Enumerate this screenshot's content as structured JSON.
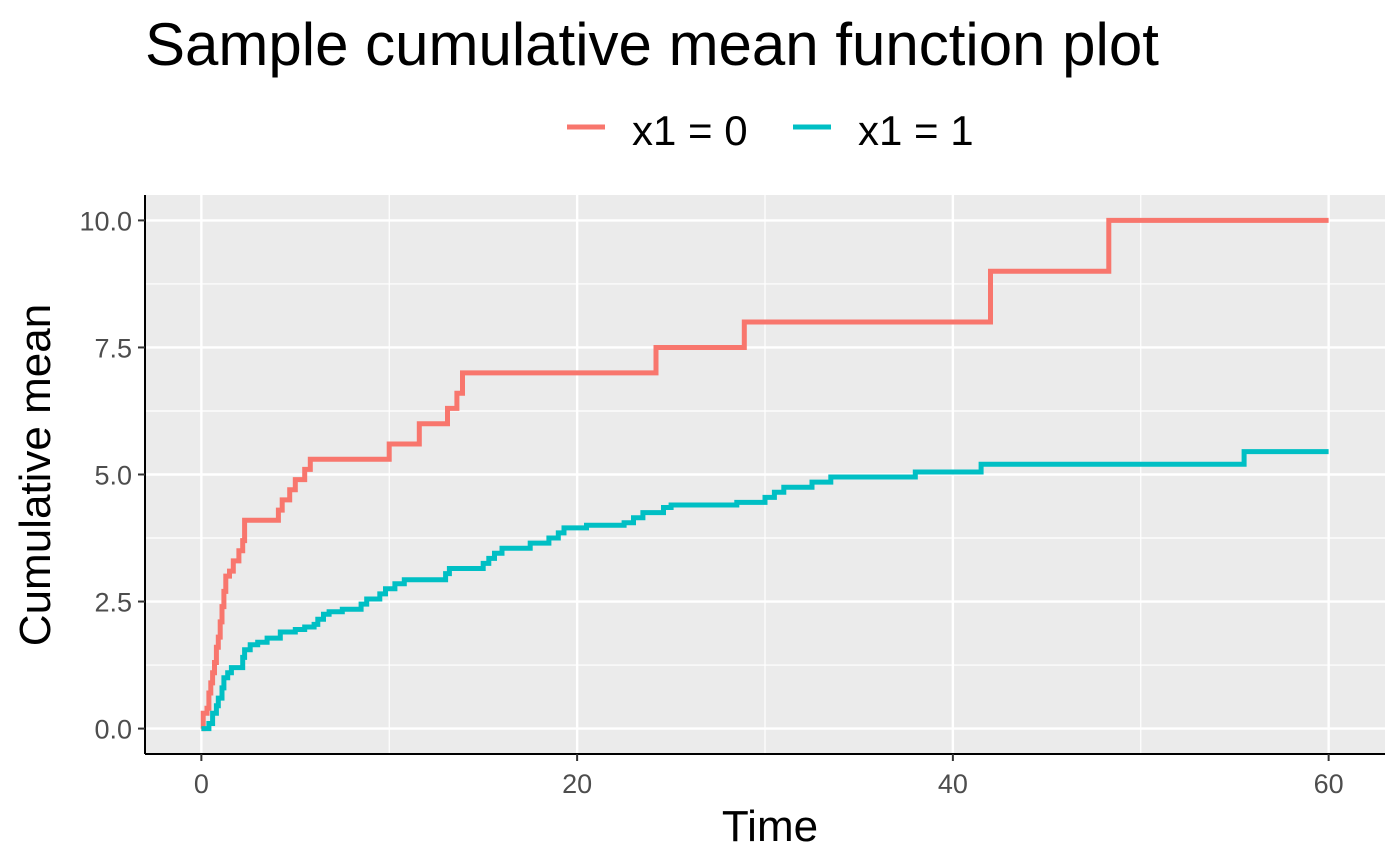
{
  "chart_data": {
    "type": "line",
    "step": true,
    "title": "Sample cumulative mean function plot",
    "xlabel": "Time",
    "ylabel": "Cumulative mean",
    "xlim": [
      -3,
      63
    ],
    "ylim": [
      -0.5,
      10.5
    ],
    "xticks": [
      0,
      20,
      40,
      60
    ],
    "xtick_labels": [
      "0",
      "20",
      "40",
      "60"
    ],
    "yticks": [
      0,
      2.5,
      5,
      7.5,
      10
    ],
    "ytick_labels": [
      "0.0",
      "2.5",
      "5.0",
      "7.5",
      "10.0"
    ],
    "grid": true,
    "legend_position": "top",
    "series": [
      {
        "name": "x1 = 0",
        "color": "#F8766D",
        "points": [
          [
            0,
            0
          ],
          [
            0.1,
            0.3
          ],
          [
            0.3,
            0.4
          ],
          [
            0.4,
            0.7
          ],
          [
            0.5,
            0.9
          ],
          [
            0.6,
            1.1
          ],
          [
            0.7,
            1.3
          ],
          [
            0.8,
            1.6
          ],
          [
            0.9,
            1.8
          ],
          [
            1.0,
            2.1
          ],
          [
            1.1,
            2.4
          ],
          [
            1.2,
            2.7
          ],
          [
            1.3,
            3.0
          ],
          [
            1.5,
            3.1
          ],
          [
            1.7,
            3.3
          ],
          [
            2.0,
            3.5
          ],
          [
            2.2,
            3.7
          ],
          [
            2.3,
            4.1
          ],
          [
            4.1,
            4.3
          ],
          [
            4.3,
            4.5
          ],
          [
            4.7,
            4.7
          ],
          [
            5.0,
            4.9
          ],
          [
            5.5,
            5.1
          ],
          [
            5.8,
            5.3
          ],
          [
            10.0,
            5.6
          ],
          [
            11.6,
            6.0
          ],
          [
            13.1,
            6.3
          ],
          [
            13.6,
            6.6
          ],
          [
            13.9,
            7.0
          ],
          [
            24.2,
            7.5
          ],
          [
            28.9,
            8.0
          ],
          [
            42.0,
            9.0
          ],
          [
            48.3,
            10.0
          ],
          [
            60,
            10.0
          ]
        ]
      },
      {
        "name": "x1 = 1",
        "color": "#00BFC4",
        "points": [
          [
            0,
            0
          ],
          [
            0.4,
            0.1
          ],
          [
            0.6,
            0.3
          ],
          [
            0.8,
            0.45
          ],
          [
            0.9,
            0.6
          ],
          [
            1.1,
            0.8
          ],
          [
            1.2,
            1.0
          ],
          [
            1.4,
            1.1
          ],
          [
            1.6,
            1.2
          ],
          [
            2.2,
            1.4
          ],
          [
            2.3,
            1.55
          ],
          [
            2.6,
            1.65
          ],
          [
            3.0,
            1.7
          ],
          [
            3.5,
            1.78
          ],
          [
            4.2,
            1.9
          ],
          [
            5.0,
            1.95
          ],
          [
            5.5,
            2.0
          ],
          [
            6.0,
            2.05
          ],
          [
            6.2,
            2.15
          ],
          [
            6.5,
            2.25
          ],
          [
            6.8,
            2.3
          ],
          [
            7.5,
            2.35
          ],
          [
            8.5,
            2.45
          ],
          [
            8.8,
            2.55
          ],
          [
            9.5,
            2.65
          ],
          [
            9.8,
            2.75
          ],
          [
            10.3,
            2.85
          ],
          [
            10.8,
            2.93
          ],
          [
            13.0,
            3.05
          ],
          [
            13.2,
            3.15
          ],
          [
            15.0,
            3.25
          ],
          [
            15.3,
            3.35
          ],
          [
            15.6,
            3.45
          ],
          [
            16.0,
            3.55
          ],
          [
            17.5,
            3.65
          ],
          [
            18.5,
            3.75
          ],
          [
            19.0,
            3.85
          ],
          [
            19.3,
            3.95
          ],
          [
            20.5,
            4.0
          ],
          [
            22.5,
            4.05
          ],
          [
            23.0,
            4.15
          ],
          [
            23.5,
            4.25
          ],
          [
            24.6,
            4.35
          ],
          [
            25.0,
            4.4
          ],
          [
            28.5,
            4.45
          ],
          [
            30.0,
            4.55
          ],
          [
            30.5,
            4.65
          ],
          [
            31.0,
            4.75
          ],
          [
            32.5,
            4.85
          ],
          [
            33.5,
            4.95
          ],
          [
            38.0,
            5.05
          ],
          [
            41.5,
            5.2
          ],
          [
            55.5,
            5.45
          ],
          [
            60,
            5.45
          ]
        ]
      }
    ]
  }
}
